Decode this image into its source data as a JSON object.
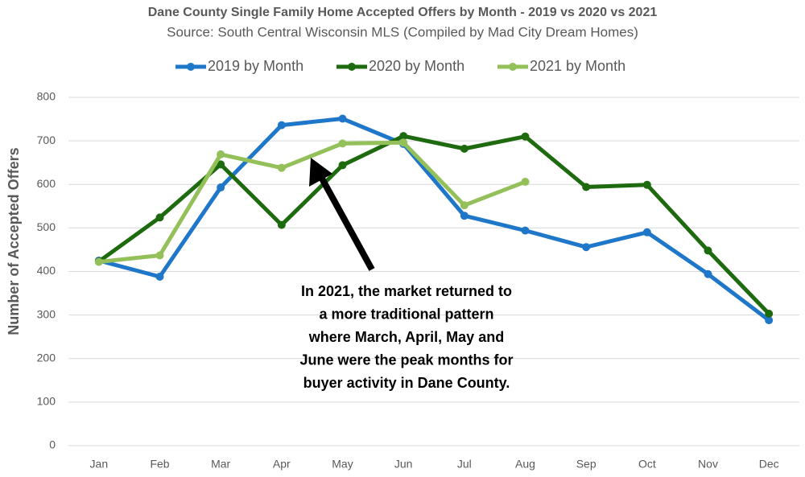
{
  "chart_data": {
    "type": "line",
    "title": "Dane County Single Family Home Accepted Offers by Month - 2019 vs 2020 vs 2021",
    "subtitle": "Source: South Central Wisconsin MLS (Compiled by Mad City Dream Homes)",
    "y_label": "Number of Accepted Offers",
    "categories": [
      "Jan",
      "Feb",
      "Mar",
      "Apr",
      "May",
      "Jun",
      "Jul",
      "Aug",
      "Sep",
      "Oct",
      "Nov",
      "Dec"
    ],
    "series": [
      {
        "name": "2019 by Month",
        "color": "#1f77c9",
        "values": [
          425,
          388,
          593,
          736,
          751,
          693,
          528,
          494,
          456,
          490,
          394,
          288
        ]
      },
      {
        "name": "2020 by Month",
        "color": "#1e6b0f",
        "values": [
          423,
          524,
          646,
          507,
          644,
          711,
          682,
          710,
          594,
          599,
          448,
          303
        ]
      },
      {
        "name": "2021 by Month",
        "color": "#94c05a",
        "values": [
          422,
          437,
          669,
          638,
          694,
          696,
          552,
          606,
          null,
          null,
          null,
          null
        ]
      }
    ],
    "ylim": [
      0,
      800
    ],
    "yticks": [
      0,
      100,
      200,
      300,
      400,
      500,
      600,
      700,
      800
    ],
    "grid": true,
    "legend": "top",
    "annotation": [
      "In 2021, the market returned to",
      "a more traditional pattern",
      "where March, April, May and",
      "June were the peak months for",
      "buyer activity in Dane County."
    ]
  }
}
